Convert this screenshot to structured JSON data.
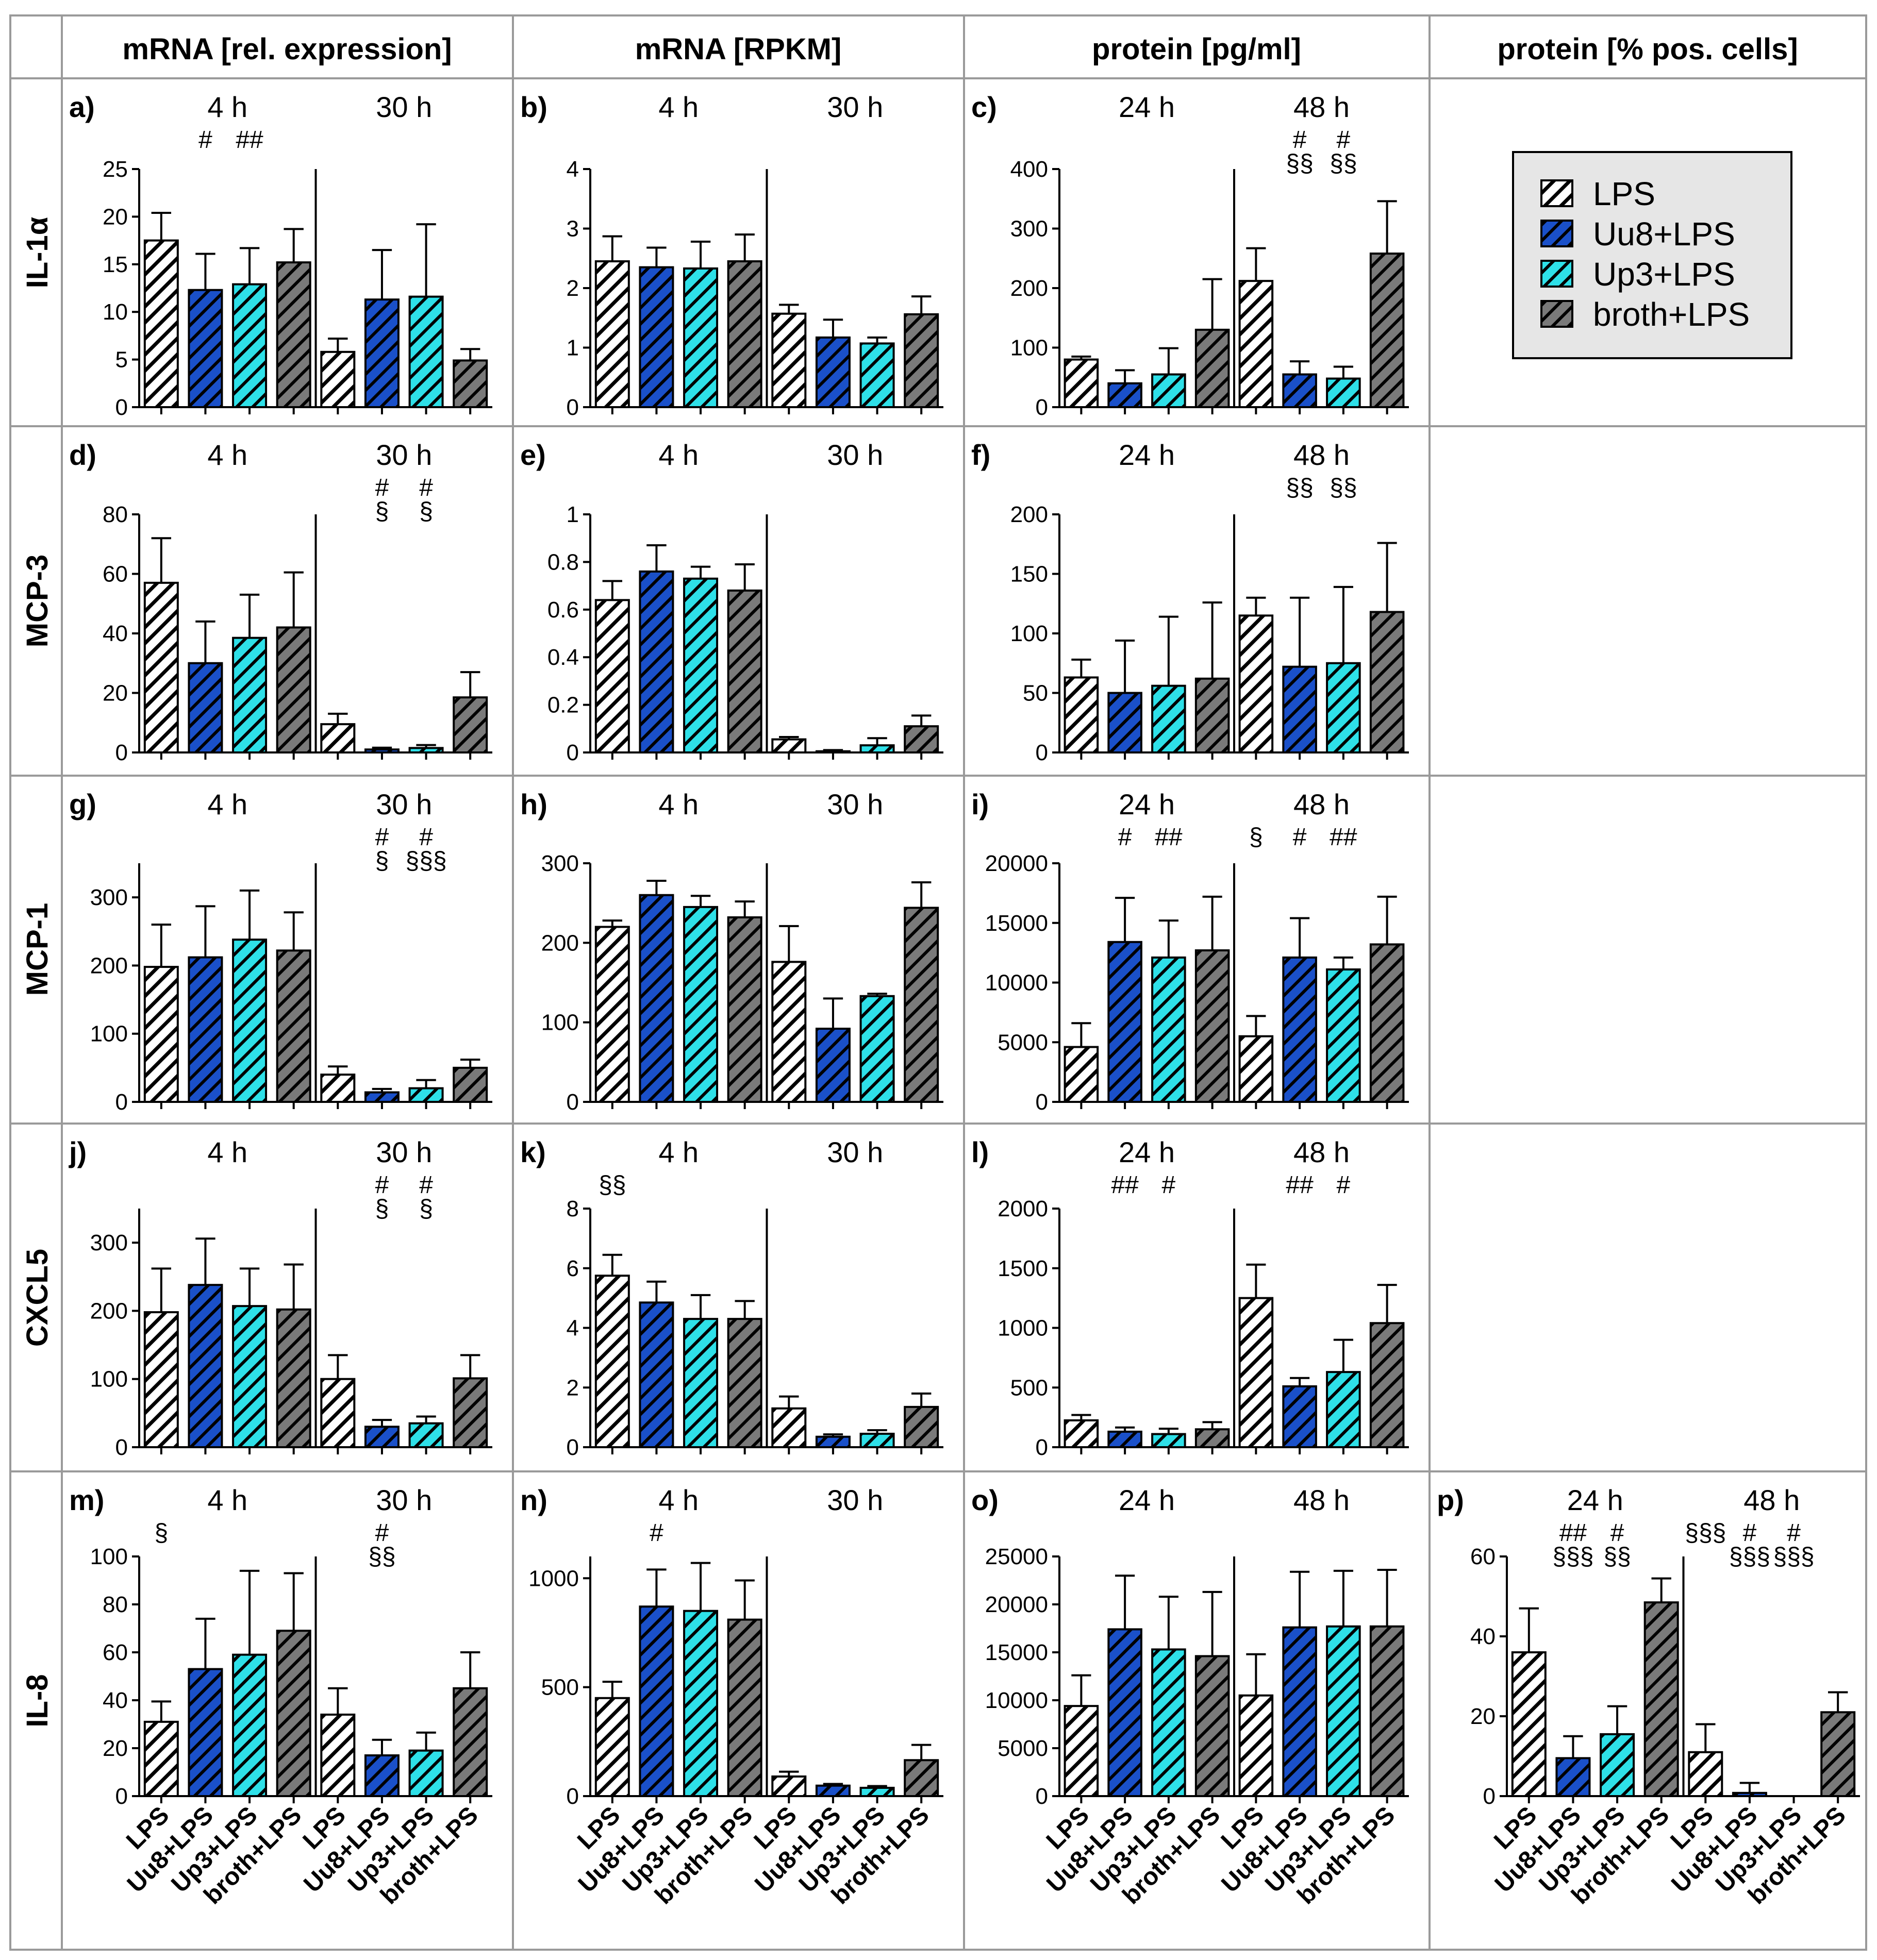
{
  "column_headers": [
    "mRNA [rel. expression]",
    "mRNA [RPKM]",
    "protein [pg/ml]",
    "protein [% pos. cells]"
  ],
  "row_headers": [
    "IL-1α",
    "MCP-3",
    "MCP-1",
    "CXCL5",
    "IL-8"
  ],
  "legend": [
    {
      "label": "LPS",
      "pattern": "white"
    },
    {
      "label": "Uu8+LPS",
      "pattern": "blue"
    },
    {
      "label": "Up3+LPS",
      "pattern": "cyan"
    },
    {
      "label": "broth+LPS",
      "pattern": "gray"
    }
  ],
  "colors": {
    "blue": "#1a50c9",
    "cyan": "#2ee0e8",
    "gray": "#7a7a7a",
    "white": "#ffffff",
    "ink": "#000000",
    "grid_line": "#9a9a9a"
  },
  "chart_data": [
    {
      "id": "a",
      "label": "a)",
      "row": 0,
      "col": 0,
      "type": "bar",
      "title": "IL-1α mRNA [rel. expression]",
      "groups": [
        "4 h",
        "30 h"
      ],
      "categories": [
        "LPS",
        "Uu8+LPS",
        "Up3+LPS",
        "broth+LPS"
      ],
      "ylim": [
        0,
        25
      ],
      "yticks": [
        0,
        5,
        10,
        15,
        20,
        25
      ],
      "values": [
        [
          17.5,
          12.3,
          12.9,
          15.2
        ],
        [
          5.8,
          11.3,
          11.6,
          4.9
        ]
      ],
      "errors": [
        [
          2.9,
          3.8,
          3.8,
          3.5
        ],
        [
          1.4,
          5.2,
          7.6,
          1.2
        ]
      ],
      "annotations": [
        [
          "",
          "#",
          "##",
          ""
        ],
        [
          "",
          "",
          "",
          ""
        ]
      ],
      "show_xlabels": false
    },
    {
      "id": "b",
      "label": "b)",
      "row": 0,
      "col": 1,
      "type": "bar",
      "title": "IL-1α mRNA [RPKM]",
      "groups": [
        "4 h",
        "30 h"
      ],
      "categories": [
        "LPS",
        "Uu8+LPS",
        "Up3+LPS",
        "broth+LPS"
      ],
      "ylim": [
        0,
        4
      ],
      "yticks": [
        0,
        1,
        2,
        3,
        4
      ],
      "values": [
        [
          2.45,
          2.35,
          2.33,
          2.45
        ],
        [
          1.57,
          1.17,
          1.07,
          1.56
        ]
      ],
      "errors": [
        [
          0.42,
          0.33,
          0.45,
          0.45
        ],
        [
          0.15,
          0.3,
          0.1,
          0.3
        ]
      ],
      "annotations": [
        [
          "",
          "",
          "",
          ""
        ],
        [
          "",
          "",
          "",
          ""
        ]
      ],
      "show_xlabels": false
    },
    {
      "id": "c",
      "label": "c)",
      "row": 0,
      "col": 2,
      "type": "bar",
      "title": "IL-1α protein [pg/ml]",
      "groups": [
        "24 h",
        "48 h"
      ],
      "categories": [
        "LPS",
        "Uu8+LPS",
        "Up3+LPS",
        "broth+LPS"
      ],
      "ylim": [
        0,
        400
      ],
      "yticks": [
        0,
        100,
        200,
        300,
        400
      ],
      "values": [
        [
          80,
          40,
          55,
          130
        ],
        [
          212,
          55,
          48,
          258
        ]
      ],
      "errors": [
        [
          5,
          22,
          44,
          85
        ],
        [
          55,
          22,
          20,
          88
        ]
      ],
      "annotations": [
        [
          "",
          "",
          "",
          ""
        ],
        [
          "",
          "#\n§§",
          "#\n§§",
          ""
        ]
      ],
      "show_xlabels": false
    },
    {
      "id": "d",
      "label": "d)",
      "row": 1,
      "col": 0,
      "type": "bar",
      "title": "MCP-3 mRNA [rel. expression]",
      "groups": [
        "4 h",
        "30 h"
      ],
      "categories": [
        "LPS",
        "Uu8+LPS",
        "Up3+LPS",
        "broth+LPS"
      ],
      "ylim": [
        0,
        80
      ],
      "yticks": [
        0,
        20,
        40,
        60,
        80
      ],
      "values": [
        [
          57,
          30,
          38.5,
          42
        ],
        [
          9.5,
          1,
          1.5,
          18.5
        ]
      ],
      "errors": [
        [
          15,
          14,
          14.5,
          18.5
        ],
        [
          3.5,
          0.6,
          1,
          8.5
        ]
      ],
      "annotations": [
        [
          "",
          "",
          "",
          ""
        ],
        [
          "",
          "#\n§",
          "#\n§",
          ""
        ]
      ],
      "show_xlabels": false
    },
    {
      "id": "e",
      "label": "e)",
      "row": 1,
      "col": 1,
      "type": "bar",
      "title": "MCP-3 mRNA [RPKM]",
      "groups": [
        "4 h",
        "30 h"
      ],
      "categories": [
        "LPS",
        "Uu8+LPS",
        "Up3+LPS",
        "broth+LPS"
      ],
      "ylim": [
        0,
        1.0
      ],
      "yticks": [
        0.0,
        0.2,
        0.4,
        0.6,
        0.8,
        1.0
      ],
      "values": [
        [
          0.64,
          0.76,
          0.73,
          0.68
        ],
        [
          0.055,
          0.005,
          0.03,
          0.11
        ]
      ],
      "errors": [
        [
          0.08,
          0.11,
          0.05,
          0.11
        ],
        [
          0.01,
          0.005,
          0.03,
          0.045
        ]
      ],
      "annotations": [
        [
          "",
          "",
          "",
          ""
        ],
        [
          "",
          "",
          "",
          ""
        ]
      ],
      "show_xlabels": false
    },
    {
      "id": "f",
      "label": "f)",
      "row": 1,
      "col": 2,
      "type": "bar",
      "title": "MCP-3 protein [pg/ml]",
      "groups": [
        "24 h",
        "48 h"
      ],
      "categories": [
        "LPS",
        "Uu8+LPS",
        "Up3+LPS",
        "broth+LPS"
      ],
      "ylim": [
        0,
        200
      ],
      "yticks": [
        0,
        50,
        100,
        150,
        200
      ],
      "values": [
        [
          63,
          50,
          56,
          62
        ],
        [
          115,
          72,
          75,
          118
        ]
      ],
      "errors": [
        [
          15,
          44,
          58,
          64
        ],
        [
          15,
          58,
          64,
          58
        ]
      ],
      "annotations": [
        [
          "",
          "",
          "",
          ""
        ],
        [
          "",
          "§§",
          "§§",
          ""
        ]
      ],
      "show_xlabels": false
    },
    {
      "id": "g",
      "label": "g)",
      "row": 2,
      "col": 0,
      "type": "bar",
      "title": "MCP-1 mRNA [rel. expression]",
      "groups": [
        "4 h",
        "30 h"
      ],
      "categories": [
        "LPS",
        "Uu8+LPS",
        "Up3+LPS",
        "broth+LPS"
      ],
      "ylim": [
        0,
        350
      ],
      "yticks": [
        0,
        100,
        200,
        300
      ],
      "values": [
        [
          198,
          212,
          238,
          222
        ],
        [
          40,
          14,
          20,
          50
        ]
      ],
      "errors": [
        [
          62,
          75,
          72,
          56
        ],
        [
          12,
          5,
          12,
          12
        ]
      ],
      "annotations": [
        [
          "",
          "",
          "",
          ""
        ],
        [
          "",
          "#\n§",
          "#\n§§§",
          ""
        ]
      ],
      "show_xlabels": false
    },
    {
      "id": "h",
      "label": "h)",
      "row": 2,
      "col": 1,
      "type": "bar",
      "title": "MCP-1 mRNA [RPKM]",
      "groups": [
        "4 h",
        "30 h"
      ],
      "categories": [
        "LPS",
        "Uu8+LPS",
        "Up3+LPS",
        "broth+LPS"
      ],
      "ylim": [
        0,
        300
      ],
      "yticks": [
        0,
        100,
        200,
        300
      ],
      "values": [
        [
          220,
          260,
          245,
          232
        ],
        [
          176,
          92,
          133,
          244
        ]
      ],
      "errors": [
        [
          8,
          18,
          14,
          20
        ],
        [
          45,
          38,
          3,
          32
        ]
      ],
      "annotations": [
        [
          "",
          "",
          "",
          ""
        ],
        [
          "",
          "",
          "",
          ""
        ]
      ],
      "show_xlabels": false
    },
    {
      "id": "i",
      "label": "i)",
      "row": 2,
      "col": 2,
      "type": "bar",
      "title": "MCP-1 protein [pg/ml]",
      "groups": [
        "24 h",
        "48 h"
      ],
      "categories": [
        "LPS",
        "Uu8+LPS",
        "Up3+LPS",
        "broth+LPS"
      ],
      "ylim": [
        0,
        20000
      ],
      "yticks": [
        0,
        5000,
        10000,
        15000,
        20000
      ],
      "values": [
        [
          4600,
          13400,
          12100,
          12700
        ],
        [
          5500,
          12100,
          11100,
          13200
        ]
      ],
      "errors": [
        [
          2000,
          3700,
          3100,
          4500
        ],
        [
          1700,
          3300,
          1000,
          4000
        ]
      ],
      "annotations": [
        [
          "",
          "#",
          "##",
          ""
        ],
        [
          "§",
          "#",
          "##",
          ""
        ]
      ],
      "show_xlabels": false
    },
    {
      "id": "j",
      "label": "j)",
      "row": 3,
      "col": 0,
      "type": "bar",
      "title": "CXCL5 mRNA [rel. expression]",
      "groups": [
        "4 h",
        "30 h"
      ],
      "categories": [
        "LPS",
        "Uu8+LPS",
        "Up3+LPS",
        "broth+LPS"
      ],
      "ylim": [
        0,
        350
      ],
      "yticks": [
        0,
        100,
        200,
        300
      ],
      "values": [
        [
          198,
          238,
          207,
          202
        ],
        [
          100,
          30,
          35,
          101
        ]
      ],
      "errors": [
        [
          64,
          68,
          55,
          66
        ],
        [
          35,
          10,
          10,
          34
        ]
      ],
      "annotations": [
        [
          "",
          "",
          "",
          ""
        ],
        [
          "",
          "#\n§",
          "#\n§",
          ""
        ]
      ],
      "show_xlabels": false
    },
    {
      "id": "k",
      "label": "k)",
      "row": 3,
      "col": 1,
      "type": "bar",
      "title": "CXCL5 mRNA [RPKM]",
      "groups": [
        "4 h",
        "30 h"
      ],
      "categories": [
        "LPS",
        "Uu8+LPS",
        "Up3+LPS",
        "broth+LPS"
      ],
      "ylim": [
        0,
        8
      ],
      "yticks": [
        0,
        2,
        4,
        6,
        8
      ],
      "values": [
        [
          5.75,
          4.85,
          4.3,
          4.3
        ],
        [
          1.3,
          0.35,
          0.45,
          1.35
        ]
      ],
      "errors": [
        [
          0.7,
          0.7,
          0.8,
          0.6
        ],
        [
          0.4,
          0.08,
          0.12,
          0.45
        ]
      ],
      "annotations": [
        [
          "§§",
          "",
          "",
          ""
        ],
        [
          "",
          "",
          "",
          ""
        ]
      ],
      "show_xlabels": false
    },
    {
      "id": "l",
      "label": "l)",
      "row": 3,
      "col": 2,
      "type": "bar",
      "title": "CXCL5 protein [pg/ml]",
      "groups": [
        "24 h",
        "48 h"
      ],
      "categories": [
        "LPS",
        "Uu8+LPS",
        "Up3+LPS",
        "broth+LPS"
      ],
      "ylim": [
        0,
        2000
      ],
      "yticks": [
        0,
        500,
        1000,
        1500,
        2000
      ],
      "values": [
        [
          225,
          130,
          110,
          150
        ],
        [
          1250,
          510,
          630,
          1040
        ]
      ],
      "errors": [
        [
          45,
          35,
          45,
          60
        ],
        [
          280,
          70,
          270,
          320
        ]
      ],
      "annotations": [
        [
          "",
          "##",
          "#",
          ""
        ],
        [
          "",
          "##",
          "#",
          ""
        ]
      ],
      "show_xlabels": false
    },
    {
      "id": "m",
      "label": "m)",
      "row": 4,
      "col": 0,
      "type": "bar",
      "title": "IL-8 mRNA [rel. expression]",
      "groups": [
        "4 h",
        "30 h"
      ],
      "categories": [
        "LPS",
        "Uu8+LPS",
        "Up3+LPS",
        "broth+LPS"
      ],
      "ylim": [
        0,
        100
      ],
      "yticks": [
        0,
        20,
        40,
        60,
        80,
        100
      ],
      "values": [
        [
          31,
          53,
          59,
          69
        ],
        [
          34,
          17,
          19,
          45
        ]
      ],
      "errors": [
        [
          8.5,
          21,
          35,
          24
        ],
        [
          11,
          6.5,
          7.5,
          15
        ]
      ],
      "annotations": [
        [
          "§",
          "",
          "",
          ""
        ],
        [
          "",
          "#\n§§",
          "",
          ""
        ]
      ],
      "show_xlabels": true
    },
    {
      "id": "n",
      "label": "n)",
      "row": 4,
      "col": 1,
      "type": "bar",
      "title": "IL-8 mRNA [RPKM]",
      "groups": [
        "4 h",
        "30 h"
      ],
      "categories": [
        "LPS",
        "Uu8+LPS",
        "Up3+LPS",
        "broth+LPS"
      ],
      "ylim": [
        0,
        1100
      ],
      "yticks": [
        0,
        500,
        1000
      ],
      "values": [
        [
          450,
          870,
          850,
          810
        ],
        [
          90,
          48,
          38,
          165
        ]
      ],
      "errors": [
        [
          75,
          170,
          220,
          180
        ],
        [
          22,
          8,
          8,
          70
        ]
      ],
      "annotations": [
        [
          "",
          "#",
          "",
          ""
        ],
        [
          "",
          "",
          "",
          ""
        ]
      ],
      "show_xlabels": true
    },
    {
      "id": "o",
      "label": "o)",
      "row": 4,
      "col": 2,
      "type": "bar",
      "title": "IL-8 protein [pg/ml]",
      "groups": [
        "24 h",
        "48 h"
      ],
      "categories": [
        "LPS",
        "Uu8+LPS",
        "Up3+LPS",
        "broth+LPS"
      ],
      "ylim": [
        0,
        25000
      ],
      "yticks": [
        0,
        5000,
        10000,
        15000,
        20000,
        25000
      ],
      "values": [
        [
          9400,
          17400,
          15300,
          14600
        ],
        [
          10500,
          17600,
          17700,
          17700
        ]
      ],
      "errors": [
        [
          3200,
          5600,
          5500,
          6700
        ],
        [
          4300,
          5800,
          5800,
          5900
        ]
      ],
      "annotations": [
        [
          "",
          "",
          "",
          ""
        ],
        [
          "",
          "",
          "",
          ""
        ]
      ],
      "show_xlabels": true
    },
    {
      "id": "p",
      "label": "p)",
      "row": 4,
      "col": 3,
      "type": "bar",
      "title": "IL-8 protein [% pos. cells]",
      "groups": [
        "24 h",
        "48 h"
      ],
      "categories": [
        "LPS",
        "Uu8+LPS",
        "Up3+LPS",
        "broth+LPS"
      ],
      "ylim": [
        0,
        60
      ],
      "yticks": [
        0,
        20,
        40,
        60
      ],
      "values": [
        [
          36,
          9.5,
          15.5,
          48.5
        ],
        [
          11,
          0.8,
          0,
          21
        ]
      ],
      "errors": [
        [
          11,
          5.5,
          7,
          6
        ],
        [
          7,
          2.5,
          0,
          5
        ]
      ],
      "annotations": [
        [
          "",
          "##\n§§§",
          "#\n§§",
          ""
        ],
        [
          "§§§",
          "#\n§§§",
          "#\n§§§",
          ""
        ]
      ],
      "show_xlabels": true
    }
  ]
}
